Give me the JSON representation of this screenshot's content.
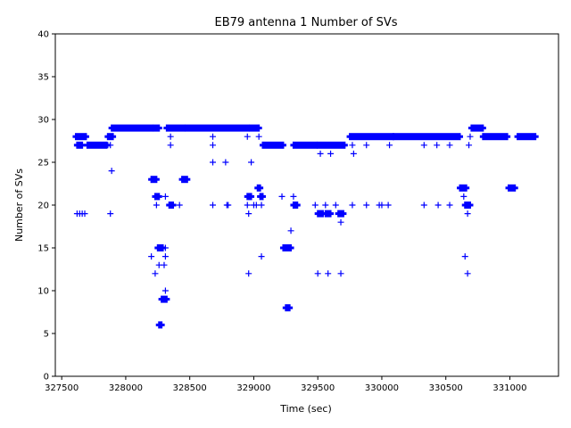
{
  "chart_data": {
    "type": "scatter",
    "title": "EB79 antenna 1 Number of SVs",
    "xlabel": "Time (sec)",
    "ylabel": "Number of SVs",
    "xlim": [
      327450,
      331380
    ],
    "ylim": [
      0,
      40
    ],
    "xticks": [
      327500,
      328000,
      328500,
      329000,
      329500,
      330000,
      330500,
      331000
    ],
    "yticks": [
      0,
      5,
      10,
      15,
      20,
      25,
      30,
      35,
      40
    ],
    "grid": false,
    "marker": "+",
    "color": "#0000ff",
    "series": [
      {
        "name": "Number of SVs",
        "segments": [
          {
            "x0": 327610,
            "x1": 327690,
            "y": 28
          },
          {
            "x0": 327620,
            "x1": 327660,
            "y": 27
          },
          {
            "x0": 327700,
            "x1": 327850,
            "y": 27
          },
          {
            "x0": 327860,
            "x1": 327900,
            "y": 28
          },
          {
            "x0": 327890,
            "x1": 328210,
            "y": 29
          },
          {
            "x0": 328220,
            "x1": 328260,
            "y": 29
          },
          {
            "x0": 328200,
            "x1": 328240,
            "y": 23
          },
          {
            "x0": 328230,
            "x1": 328260,
            "y": 21
          },
          {
            "x0": 328250,
            "x1": 328290,
            "y": 15
          },
          {
            "x0": 328280,
            "x1": 328320,
            "y": 9
          },
          {
            "x0": 328260,
            "x1": 328280,
            "y": 6
          },
          {
            "x0": 328320,
            "x1": 328460,
            "y": 29
          },
          {
            "x0": 328340,
            "x1": 328370,
            "y": 20
          },
          {
            "x0": 328440,
            "x1": 328480,
            "y": 23
          },
          {
            "x0": 328470,
            "x1": 328960,
            "y": 29
          },
          {
            "x0": 328970,
            "x1": 329040,
            "y": 29
          },
          {
            "x0": 328950,
            "x1": 328980,
            "y": 21
          },
          {
            "x0": 329030,
            "x1": 329050,
            "y": 22
          },
          {
            "x0": 329050,
            "x1": 329070,
            "y": 21
          },
          {
            "x0": 329070,
            "x1": 329230,
            "y": 27
          },
          {
            "x0": 329230,
            "x1": 329290,
            "y": 15
          },
          {
            "x0": 329250,
            "x1": 329280,
            "y": 8
          },
          {
            "x0": 329310,
            "x1": 329340,
            "y": 20
          },
          {
            "x0": 329310,
            "x1": 329490,
            "y": 27
          },
          {
            "x0": 329500,
            "x1": 329710,
            "y": 27
          },
          {
            "x0": 329500,
            "x1": 329540,
            "y": 19
          },
          {
            "x0": 329560,
            "x1": 329600,
            "y": 19
          },
          {
            "x0": 329660,
            "x1": 329700,
            "y": 19
          },
          {
            "x0": 329750,
            "x1": 330090,
            "y": 28
          },
          {
            "x0": 330090,
            "x1": 330610,
            "y": 28
          },
          {
            "x0": 330610,
            "x1": 330660,
            "y": 22
          },
          {
            "x0": 330650,
            "x1": 330690,
            "y": 20
          },
          {
            "x0": 330700,
            "x1": 330790,
            "y": 29
          },
          {
            "x0": 330790,
            "x1": 330980,
            "y": 28
          },
          {
            "x0": 330990,
            "x1": 331040,
            "y": 22
          },
          {
            "x0": 331060,
            "x1": 331200,
            "y": 28
          }
        ],
        "points": [
          [
            327620,
            19
          ],
          [
            327640,
            19
          ],
          [
            327660,
            19
          ],
          [
            327680,
            19
          ],
          [
            327860,
            27
          ],
          [
            327880,
            27
          ],
          [
            327880,
            19
          ],
          [
            327890,
            24
          ],
          [
            328200,
            14
          ],
          [
            328230,
            12
          ],
          [
            328240,
            20
          ],
          [
            328260,
            13
          ],
          [
            328300,
            13
          ],
          [
            328310,
            14
          ],
          [
            328310,
            15
          ],
          [
            328310,
            21
          ],
          [
            328310,
            10
          ],
          [
            328350,
            27
          ],
          [
            328350,
            28
          ],
          [
            328350,
            20
          ],
          [
            328420,
            20
          ],
          [
            328420,
            29
          ],
          [
            328680,
            20
          ],
          [
            328680,
            25
          ],
          [
            328680,
            27
          ],
          [
            328680,
            28
          ],
          [
            328780,
            25
          ],
          [
            328790,
            20
          ],
          [
            328800,
            20
          ],
          [
            328950,
            28
          ],
          [
            328950,
            20
          ],
          [
            328960,
            19
          ],
          [
            328960,
            12
          ],
          [
            328980,
            25
          ],
          [
            329000,
            20
          ],
          [
            329020,
            20
          ],
          [
            329040,
            28
          ],
          [
            329060,
            20
          ],
          [
            329060,
            14
          ],
          [
            329220,
            21
          ],
          [
            329290,
            17
          ],
          [
            329310,
            21
          ],
          [
            329480,
            20
          ],
          [
            329500,
            12
          ],
          [
            329520,
            26
          ],
          [
            329560,
            20
          ],
          [
            329580,
            12
          ],
          [
            329600,
            26
          ],
          [
            329640,
            20
          ],
          [
            329680,
            18
          ],
          [
            329680,
            12
          ],
          [
            329770,
            20
          ],
          [
            329780,
            26
          ],
          [
            329770,
            27
          ],
          [
            329880,
            20
          ],
          [
            329880,
            27
          ],
          [
            329980,
            20
          ],
          [
            330000,
            20
          ],
          [
            330050,
            20
          ],
          [
            330060,
            27
          ],
          [
            330330,
            27
          ],
          [
            330330,
            20
          ],
          [
            330430,
            27
          ],
          [
            330440,
            20
          ],
          [
            330530,
            20
          ],
          [
            330530,
            27
          ],
          [
            330640,
            21
          ],
          [
            330650,
            14
          ],
          [
            330670,
            12
          ],
          [
            330670,
            19
          ],
          [
            330680,
            27
          ],
          [
            330690,
            28
          ]
        ]
      }
    ]
  }
}
